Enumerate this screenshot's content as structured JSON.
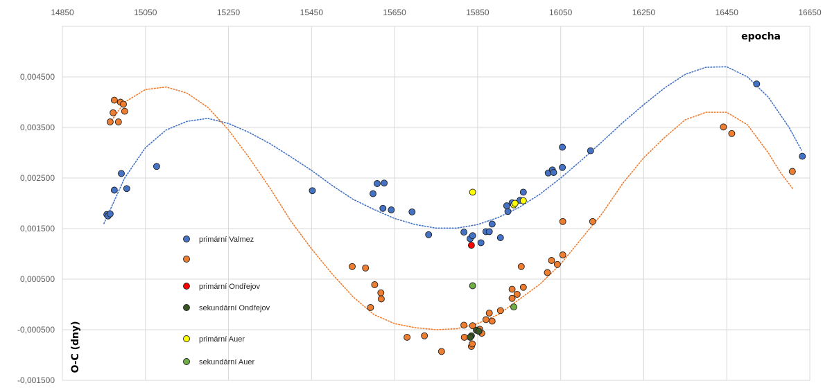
{
  "chart_data": {
    "type": "scatter",
    "xlabel": "epocha",
    "ylabel": "O-C (dny)",
    "xlim": [
      14850,
      16650
    ],
    "ylim": [
      -0.0015,
      0.0055
    ],
    "x_ticks": [
      "14850",
      "15050",
      "15250",
      "15450",
      "15650",
      "15850",
      "16050",
      "16250",
      "16450",
      "16650"
    ],
    "y_ticks": [
      "-0,001500",
      "-0,000500",
      "0,000500",
      "0,001500",
      "0,002500",
      "0,003500",
      "0,004500"
    ],
    "grid": true,
    "legend_position": "left-inside",
    "series": [
      {
        "name": "primární Valmez",
        "color": "#4472C4",
        "points": [
          [
            14957,
            0.00178
          ],
          [
            14960,
            0.00175
          ],
          [
            14965,
            0.00179
          ],
          [
            14975,
            0.00226
          ],
          [
            14992,
            0.00259
          ],
          [
            15005,
            0.00229
          ],
          [
            15077,
            0.00273
          ],
          [
            15452,
            0.00225
          ],
          [
            15598,
            0.00219
          ],
          [
            15608,
            0.00239
          ],
          [
            15625,
            0.0024
          ],
          [
            15622,
            0.0019
          ],
          [
            15642,
            0.00187
          ],
          [
            15692,
            0.00183
          ],
          [
            15732,
            0.00138
          ],
          [
            15817,
            0.00143
          ],
          [
            15832,
            0.0013
          ],
          [
            15838,
            0.00136
          ],
          [
            15858,
            0.00122
          ],
          [
            15870,
            0.00144
          ],
          [
            15878,
            0.00144
          ],
          [
            15885,
            0.00159
          ],
          [
            15905,
            0.00132
          ],
          [
            15920,
            0.00195
          ],
          [
            15923,
            0.00184
          ],
          [
            15933,
            0.00201
          ],
          [
            15952,
            0.00206
          ],
          [
            15960,
            0.00222
          ],
          [
            16020,
            0.0026
          ],
          [
            16030,
            0.00266
          ],
          [
            16033,
            0.00261
          ],
          [
            16054,
            0.00271
          ],
          [
            16054,
            0.00311
          ],
          [
            16122,
            0.00304
          ],
          [
            16522,
            0.00436
          ],
          [
            16632,
            0.00293
          ]
        ]
      },
      {
        "name": "",
        "color": "#ED7D31",
        "points": [
          [
            14965,
            0.00361
          ],
          [
            14972,
            0.00379
          ],
          [
            14975,
            0.00404
          ],
          [
            14985,
            0.00361
          ],
          [
            14990,
            0.004
          ],
          [
            14997,
            0.00396
          ],
          [
            15000,
            0.00382
          ],
          [
            15548,
            0.00075
          ],
          [
            15580,
            0.00072
          ],
          [
            15592,
            -6e-05
          ],
          [
            15602,
            0.00039
          ],
          [
            15617,
            0.00023
          ],
          [
            15618,
            0.00011
          ],
          [
            15680,
            -0.00065
          ],
          [
            15722,
            -0.00062
          ],
          [
            15763,
            -0.00093
          ],
          [
            15817,
            -0.00041
          ],
          [
            15818,
            -0.00065
          ],
          [
            15835,
            -0.00083
          ],
          [
            15837,
            -0.00078
          ],
          [
            15838,
            -0.00042
          ],
          [
            15855,
            -0.00049
          ],
          [
            15860,
            -0.00057
          ],
          [
            15870,
            -0.0003
          ],
          [
            15878,
            -0.00017
          ],
          [
            15885,
            -0.00033
          ],
          [
            15905,
            -0.00012
          ],
          [
            15933,
            0.0003
          ],
          [
            15933,
            0.00012
          ],
          [
            15945,
            0.0002
          ],
          [
            15955,
            0.00075
          ],
          [
            15960,
            0.00034
          ],
          [
            16018,
            0.00063
          ],
          [
            16028,
            0.00087
          ],
          [
            16042,
            0.00079
          ],
          [
            16055,
            0.00098
          ],
          [
            16055,
            0.00164
          ],
          [
            16127,
            0.00164
          ],
          [
            16442,
            0.00351
          ],
          [
            16462,
            0.00338
          ],
          [
            16608,
            0.00263
          ]
        ]
      },
      {
        "name": "primární Ondřejov",
        "color": "#FF0000",
        "points": [
          [
            15835,
            0.00117
          ]
        ]
      },
      {
        "name": "sekundární Ondřejov",
        "color": "#375623",
        "points": [
          [
            15847,
            -0.00051
          ],
          [
            15853,
            -0.00053
          ],
          [
            15835,
            -0.00062
          ],
          [
            15832,
            -0.00065
          ]
        ]
      },
      {
        "name": "primární Auer",
        "color": "#FFFF00",
        "points": [
          [
            15838,
            0.00222
          ],
          [
            15937,
            0.00197
          ],
          [
            15940,
            0.002
          ],
          [
            15960,
            0.00205
          ]
        ]
      },
      {
        "name": "sekundární Auer",
        "color": "#70AD47",
        "points": [
          [
            15838,
            0.00037
          ],
          [
            15937,
            -5e-05
          ]
        ]
      }
    ],
    "trendlines": [
      {
        "color": "#4472C4",
        "points": [
          [
            14950,
            0.0016
          ],
          [
            15000,
            0.0025
          ],
          [
            15050,
            0.0031
          ],
          [
            15100,
            0.00345
          ],
          [
            15150,
            0.00362
          ],
          [
            15200,
            0.00368
          ],
          [
            15250,
            0.00358
          ],
          [
            15300,
            0.0034
          ],
          [
            15350,
            0.00318
          ],
          [
            15400,
            0.00292
          ],
          [
            15450,
            0.00265
          ],
          [
            15500,
            0.00235
          ],
          [
            15550,
            0.00208
          ],
          [
            15600,
            0.00188
          ],
          [
            15650,
            0.0017
          ],
          [
            15700,
            0.00158
          ],
          [
            15750,
            0.00151
          ],
          [
            15800,
            0.00151
          ],
          [
            15850,
            0.00158
          ],
          [
            15900,
            0.00172
          ],
          [
            15950,
            0.00192
          ],
          [
            16000,
            0.00218
          ],
          [
            16050,
            0.0025
          ],
          [
            16100,
            0.00285
          ],
          [
            16150,
            0.00322
          ],
          [
            16200,
            0.0036
          ],
          [
            16250,
            0.00395
          ],
          [
            16300,
            0.00428
          ],
          [
            16350,
            0.00455
          ],
          [
            16400,
            0.00469
          ],
          [
            16450,
            0.0047
          ],
          [
            16500,
            0.0045
          ],
          [
            16550,
            0.0041
          ],
          [
            16600,
            0.0035
          ],
          [
            16630,
            0.00305
          ]
        ]
      },
      {
        "color": "#ED7D31",
        "points": [
          [
            14965,
            0.0036
          ],
          [
            15000,
            0.004
          ],
          [
            15050,
            0.00425
          ],
          [
            15100,
            0.0043
          ],
          [
            15150,
            0.00418
          ],
          [
            15200,
            0.0039
          ],
          [
            15250,
            0.00345
          ],
          [
            15300,
            0.0029
          ],
          [
            15350,
            0.0023
          ],
          [
            15400,
            0.00165
          ],
          [
            15450,
            0.0011
          ],
          [
            15500,
            0.0006
          ],
          [
            15550,
            0.00015
          ],
          [
            15600,
            -0.0002
          ],
          [
            15650,
            -0.00038
          ],
          [
            15700,
            -0.00046
          ],
          [
            15750,
            -0.0005
          ],
          [
            15800,
            -0.00048
          ],
          [
            15850,
            -0.00038
          ],
          [
            15900,
            -0.0002
          ],
          [
            15950,
            0.0001
          ],
          [
            16000,
            0.0004
          ],
          [
            16050,
            0.0008
          ],
          [
            16100,
            0.0013
          ],
          [
            16150,
            0.0018
          ],
          [
            16200,
            0.0024
          ],
          [
            16250,
            0.0029
          ],
          [
            16300,
            0.0033
          ],
          [
            16350,
            0.00365
          ],
          [
            16400,
            0.0038
          ],
          [
            16450,
            0.0038
          ],
          [
            16500,
            0.00355
          ],
          [
            16550,
            0.003
          ],
          [
            16580,
            0.0026
          ],
          [
            16610,
            0.00228
          ]
        ]
      }
    ]
  }
}
